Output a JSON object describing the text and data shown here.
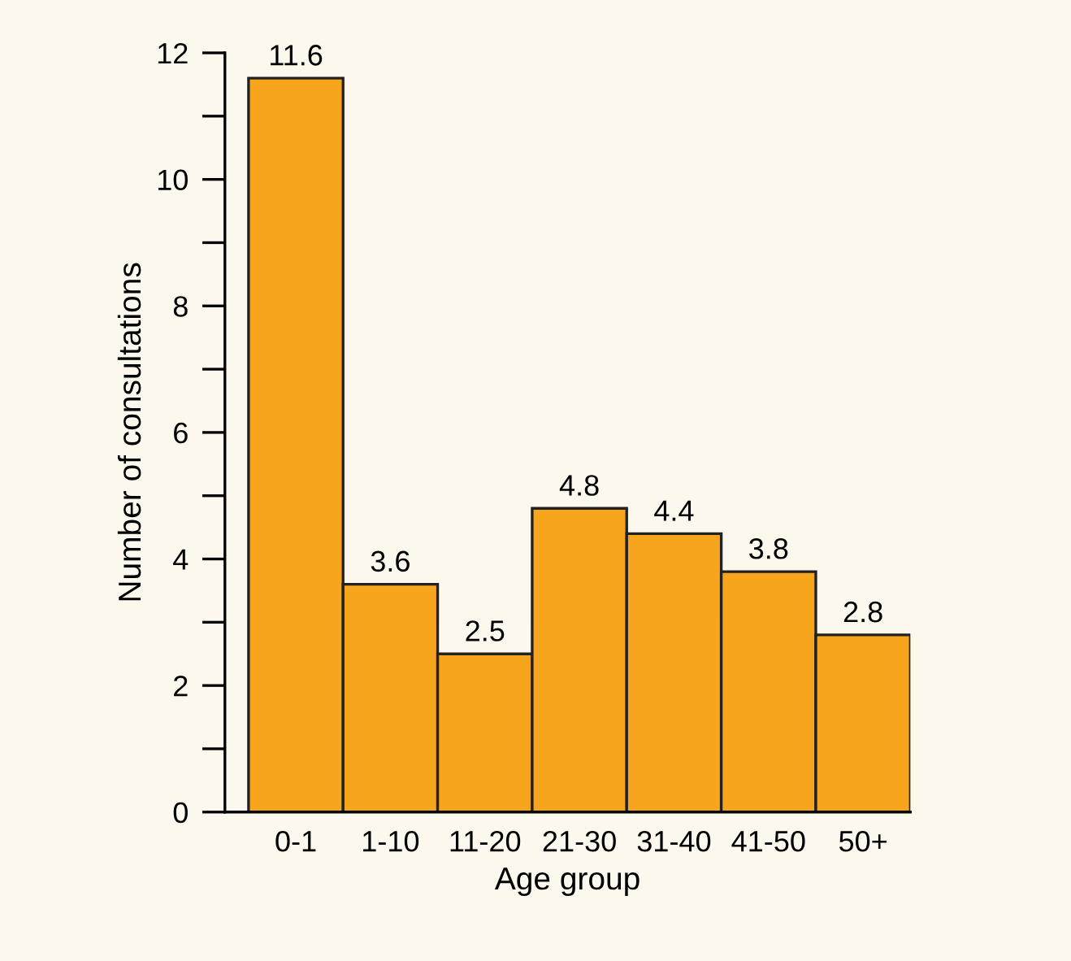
{
  "chart_data": {
    "type": "bar",
    "xlabel": "Age group",
    "ylabel": "Number of consultations",
    "categories": [
      "0-1",
      "1-10",
      "11-20",
      "21-30",
      "31-40",
      "41-50",
      "50+"
    ],
    "values": [
      11.6,
      3.6,
      2.5,
      4.8,
      4.4,
      3.8,
      2.8
    ],
    "color": "#f7a51c",
    "ylim": [
      0,
      12
    ],
    "yticks": [
      0,
      {
        "value": 1,
        "label": null
      },
      2,
      {
        "value": 3,
        "label": null
      },
      4,
      {
        "value": 5,
        "label": null
      },
      6,
      {
        "value": 7,
        "label": null
      },
      8,
      {
        "value": 9,
        "label": null
      },
      10,
      {
        "value": 11,
        "label": null
      },
      12
    ],
    "data_labels": true,
    "grid": false,
    "legend": false
  }
}
